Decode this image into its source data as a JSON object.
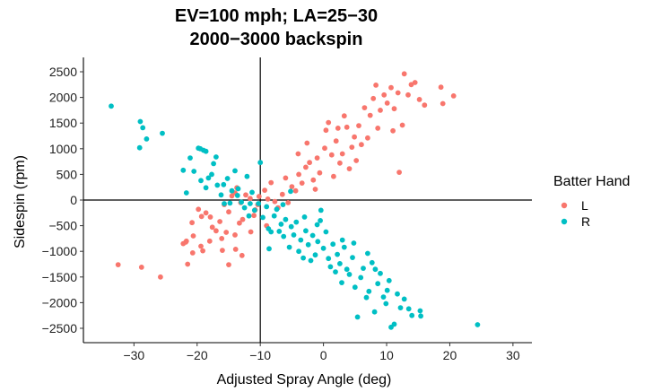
{
  "chart_data": {
    "type": "scatter",
    "title_lines": [
      "EV=100 mph; LA=25−30",
      "2000−3000 backspin"
    ],
    "xlabel": "Adjusted Spray Angle (deg)",
    "ylabel": "Sidespin (rpm)",
    "xlim": [
      -38,
      33
    ],
    "ylim": [
      -2780,
      2780
    ],
    "x_ticks": [
      -30,
      -20,
      -10,
      0,
      10,
      20,
      30
    ],
    "x_tick_labels": [
      "−30",
      "−20",
      "−10",
      "0",
      "10",
      "20",
      "30"
    ],
    "y_ticks": [
      -2500,
      -2000,
      -1500,
      -1000,
      -500,
      0,
      500,
      1000,
      1500,
      2000,
      2500
    ],
    "y_tick_labels": [
      "−2500",
      "−2000",
      "−1500",
      "−1000",
      "−500",
      "0",
      "500",
      "1000",
      "1500",
      "2000",
      "2500"
    ],
    "reference_lines": {
      "x": -10,
      "y": 0
    },
    "grid": false,
    "legend": {
      "title": "Batter Hand",
      "placement": "right"
    },
    "series": [
      {
        "name": "L",
        "color": "#F8766D",
        "points": [
          [
            -32.5,
            -1260
          ],
          [
            -28.8,
            -1310
          ],
          [
            -25.8,
            -1500
          ],
          [
            -21.5,
            -1250
          ],
          [
            -20.7,
            -1030
          ],
          [
            -21.8,
            -820
          ],
          [
            -20.6,
            -700
          ],
          [
            -19.4,
            -900
          ],
          [
            -19.1,
            -990
          ],
          [
            -18.0,
            -800
          ],
          [
            -17.6,
            -530
          ],
          [
            -16.1,
            -750
          ],
          [
            -16.0,
            -980
          ],
          [
            -15.4,
            -630
          ],
          [
            -15.0,
            -1260
          ],
          [
            -14.0,
            -680
          ],
          [
            -13.3,
            -450
          ],
          [
            -12.8,
            -380
          ],
          [
            -13.9,
            -960
          ],
          [
            -12.9,
            -1080
          ],
          [
            -11.5,
            -620
          ],
          [
            -11.0,
            -300
          ],
          [
            -10.8,
            -190
          ],
          [
            -10.4,
            -90
          ],
          [
            -20.8,
            -440
          ],
          [
            -21.7,
            -800
          ],
          [
            -19.8,
            -180
          ],
          [
            -19.3,
            -320
          ],
          [
            -18.6,
            -250
          ],
          [
            -17.9,
            -330
          ],
          [
            -16.4,
            -420
          ],
          [
            -15.7,
            -90
          ],
          [
            -15.0,
            -230
          ],
          [
            -14.5,
            80
          ],
          [
            -14.0,
            140
          ],
          [
            -13.7,
            240
          ],
          [
            -13.1,
            -50
          ],
          [
            -12.3,
            100
          ],
          [
            -11.6,
            30
          ],
          [
            -10.2,
            70
          ],
          [
            -9.3,
            190
          ],
          [
            -8.8,
            20
          ],
          [
            -8.3,
            340
          ],
          [
            -7.7,
            -30
          ],
          [
            -7.2,
            -150
          ],
          [
            -6.5,
            110
          ],
          [
            -6.0,
            430
          ],
          [
            -5.6,
            -50
          ],
          [
            -5.0,
            260
          ],
          [
            -4.4,
            180
          ],
          [
            -3.9,
            500
          ],
          [
            -3.4,
            330
          ],
          [
            -2.8,
            640
          ],
          [
            -2.2,
            730
          ],
          [
            -1.6,
            390
          ],
          [
            -1.0,
            820
          ],
          [
            -0.6,
            530
          ],
          [
            0.2,
            1010
          ],
          [
            0.4,
            1360
          ],
          [
            0.8,
            1510
          ],
          [
            1.3,
            880
          ],
          [
            1.6,
            460
          ],
          [
            2.0,
            1150
          ],
          [
            2.3,
            1400
          ],
          [
            2.6,
            720
          ],
          [
            3.0,
            900
          ],
          [
            3.3,
            1640
          ],
          [
            3.7,
            1420
          ],
          [
            4.1,
            610
          ],
          [
            4.5,
            1030
          ],
          [
            4.9,
            1230
          ],
          [
            5.2,
            770
          ],
          [
            5.6,
            1450
          ],
          [
            6.0,
            1080
          ],
          [
            6.5,
            1800
          ],
          [
            7.0,
            1210
          ],
          [
            7.4,
            1650
          ],
          [
            7.9,
            1980
          ],
          [
            8.3,
            2240
          ],
          [
            8.6,
            1400
          ],
          [
            9.0,
            1750
          ],
          [
            9.6,
            2050
          ],
          [
            10.1,
            1890
          ],
          [
            10.7,
            2190
          ],
          [
            11.2,
            1780
          ],
          [
            11.8,
            2090
          ],
          [
            12.0,
            540
          ],
          [
            12.8,
            2460
          ],
          [
            13.4,
            2050
          ],
          [
            13.9,
            2250
          ],
          [
            14.5,
            2290
          ],
          [
            15.2,
            1960
          ],
          [
            16.0,
            1850
          ],
          [
            18.6,
            2200
          ],
          [
            18.9,
            1880
          ],
          [
            20.6,
            2030
          ],
          [
            12.5,
            1460
          ],
          [
            11.0,
            1350
          ],
          [
            -4.0,
            900
          ],
          [
            -1.3,
            210
          ],
          [
            -9.0,
            -500
          ],
          [
            -17.0,
            -600
          ],
          [
            -22.2,
            -850
          ],
          [
            -2.6,
            1110
          ]
        ]
      },
      {
        "name": "R",
        "color": "#00BFC4",
        "points": [
          [
            -33.6,
            1830
          ],
          [
            -29.0,
            1530
          ],
          [
            -28.6,
            1410
          ],
          [
            -29.1,
            1020
          ],
          [
            -28.0,
            1190
          ],
          [
            -25.5,
            1300
          ],
          [
            -22.2,
            580
          ],
          [
            -21.7,
            140
          ],
          [
            -21.1,
            820
          ],
          [
            -20.5,
            560
          ],
          [
            -19.5,
            1000
          ],
          [
            -19.4,
            380
          ],
          [
            -19.0,
            970
          ],
          [
            -18.6,
            950
          ],
          [
            -18.2,
            430
          ],
          [
            -17.7,
            500
          ],
          [
            -17.4,
            710
          ],
          [
            -17.0,
            840
          ],
          [
            -16.8,
            290
          ],
          [
            -16.2,
            100
          ],
          [
            -15.7,
            -70
          ],
          [
            -15.2,
            420
          ],
          [
            -14.8,
            -60
          ],
          [
            -14.5,
            180
          ],
          [
            -14.0,
            570
          ],
          [
            -13.5,
            220
          ],
          [
            -13.0,
            -40
          ],
          [
            -12.5,
            -150
          ],
          [
            -12.1,
            460
          ],
          [
            -11.6,
            -70
          ],
          [
            -11.3,
            150
          ],
          [
            -10.9,
            -200
          ],
          [
            -10.3,
            -70
          ],
          [
            -10.0,
            730
          ],
          [
            -9.6,
            -340
          ],
          [
            -9.0,
            -130
          ],
          [
            -8.7,
            -560
          ],
          [
            -8.3,
            -620
          ],
          [
            -7.8,
            -310
          ],
          [
            -7.4,
            -180
          ],
          [
            -7.0,
            -610
          ],
          [
            -6.7,
            -470
          ],
          [
            -6.3,
            -710
          ],
          [
            -6.0,
            -380
          ],
          [
            -5.4,
            -920
          ],
          [
            -5.1,
            -520
          ],
          [
            -4.7,
            -680
          ],
          [
            -4.3,
            -430
          ],
          [
            -3.9,
            -1000
          ],
          [
            -3.6,
            -780
          ],
          [
            -3.2,
            -1130
          ],
          [
            -2.8,
            -600
          ],
          [
            -2.4,
            -870
          ],
          [
            -2.0,
            -1180
          ],
          [
            -1.7,
            -690
          ],
          [
            -1.3,
            -1070
          ],
          [
            -0.9,
            -810
          ],
          [
            -0.5,
            -400
          ],
          [
            0.0,
            -940
          ],
          [
            0.4,
            -620
          ],
          [
            0.8,
            -1140
          ],
          [
            1.1,
            -1300
          ],
          [
            1.5,
            -860
          ],
          [
            1.9,
            -1400
          ],
          [
            2.2,
            -1060
          ],
          [
            2.6,
            -1240
          ],
          [
            2.9,
            -1610
          ],
          [
            3.3,
            -920
          ],
          [
            3.7,
            -1350
          ],
          [
            4.1,
            -1450
          ],
          [
            4.6,
            -1120
          ],
          [
            5.0,
            -1700
          ],
          [
            5.4,
            -2280
          ],
          [
            5.9,
            -1510
          ],
          [
            6.3,
            -1330
          ],
          [
            6.8,
            -1900
          ],
          [
            7.2,
            -1780
          ],
          [
            7.7,
            -1220
          ],
          [
            8.1,
            -2180
          ],
          [
            8.6,
            -1630
          ],
          [
            9.0,
            -1430
          ],
          [
            9.5,
            -1890
          ],
          [
            9.9,
            -2020
          ],
          [
            10.4,
            -1570
          ],
          [
            10.7,
            -2480
          ],
          [
            11.2,
            -2420
          ],
          [
            11.7,
            -1830
          ],
          [
            12.2,
            -2100
          ],
          [
            12.8,
            -1930
          ],
          [
            13.5,
            -2120
          ],
          [
            14.0,
            -2250
          ],
          [
            15.3,
            -2160
          ],
          [
            15.4,
            -2260
          ],
          [
            24.4,
            -2430
          ],
          [
            -0.4,
            -200
          ],
          [
            -3.0,
            -330
          ],
          [
            -6.4,
            -90
          ],
          [
            -5.2,
            170
          ],
          [
            -11.8,
            -310
          ],
          [
            -13.6,
            90
          ],
          [
            -15.8,
            300
          ],
          [
            4.8,
            -840
          ],
          [
            7.0,
            -1040
          ],
          [
            8.2,
            -1350
          ],
          [
            10.1,
            -1760
          ],
          [
            3.0,
            -780
          ],
          [
            -1.0,
            -480
          ],
          [
            -8.6,
            -950
          ],
          [
            -18.6,
            240
          ],
          [
            -19.8,
            1010
          ]
        ]
      }
    ]
  }
}
